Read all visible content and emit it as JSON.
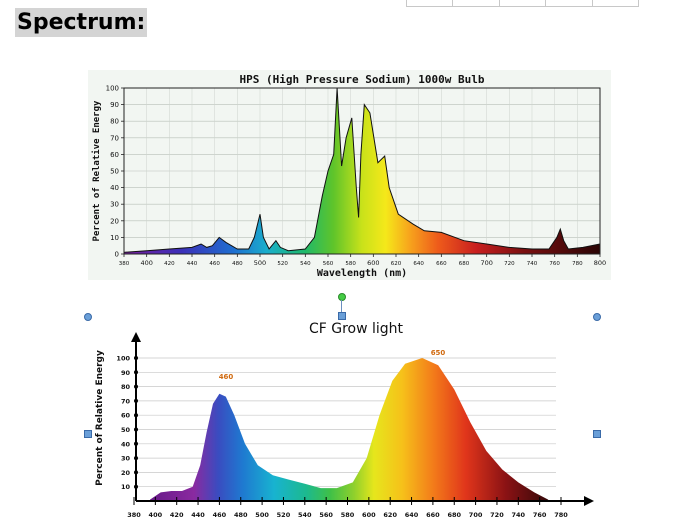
{
  "heading": "Spectrum:",
  "chart_data": [
    {
      "type": "area",
      "title": "HPS  (High Pressure Sodium) 1000w Bulb",
      "xlabel": "Wavelength (nm)",
      "ylabel": "Percent of Relative Energy",
      "xlim": [
        380,
        800
      ],
      "ylim": [
        0,
        100
      ],
      "x_ticks": [
        380,
        400,
        420,
        440,
        460,
        480,
        500,
        520,
        540,
        560,
        580,
        600,
        620,
        640,
        660,
        680,
        700,
        720,
        740,
        760,
        780,
        800
      ],
      "y_ticks": [
        0,
        10,
        20,
        30,
        40,
        50,
        60,
        70,
        80,
        90,
        100
      ],
      "grid": true,
      "points": [
        [
          380,
          1
        ],
        [
          400,
          2
        ],
        [
          420,
          3
        ],
        [
          440,
          4
        ],
        [
          448,
          6
        ],
        [
          453,
          4
        ],
        [
          458,
          5
        ],
        [
          464,
          10
        ],
        [
          470,
          7
        ],
        [
          480,
          3
        ],
        [
          490,
          3
        ],
        [
          495,
          10
        ],
        [
          500,
          24
        ],
        [
          503,
          10
        ],
        [
          508,
          3
        ],
        [
          514,
          8
        ],
        [
          518,
          4
        ],
        [
          525,
          2
        ],
        [
          540,
          3
        ],
        [
          548,
          10
        ],
        [
          555,
          35
        ],
        [
          560,
          50
        ],
        [
          565,
          60
        ],
        [
          568,
          100
        ],
        [
          572,
          53
        ],
        [
          576,
          70
        ],
        [
          581,
          82
        ],
        [
          585,
          40
        ],
        [
          587,
          22
        ],
        [
          589,
          60
        ],
        [
          592,
          90
        ],
        [
          597,
          85
        ],
        [
          604,
          55
        ],
        [
          610,
          59
        ],
        [
          614,
          40
        ],
        [
          622,
          24
        ],
        [
          635,
          18
        ],
        [
          645,
          14
        ],
        [
          660,
          13
        ],
        [
          680,
          8
        ],
        [
          700,
          6
        ],
        [
          720,
          4
        ],
        [
          740,
          3
        ],
        [
          755,
          3
        ],
        [
          762,
          10
        ],
        [
          765,
          15
        ],
        [
          768,
          8
        ],
        [
          772,
          3
        ],
        [
          785,
          4
        ],
        [
          800,
          6
        ]
      ]
    },
    {
      "type": "area",
      "title": "CF Grow light",
      "xlabel": "",
      "ylabel": "Percent of Relative Energy",
      "xlim": [
        380,
        780
      ],
      "ylim": [
        0,
        100
      ],
      "x_ticks": [
        380,
        400,
        420,
        440,
        460,
        480,
        500,
        520,
        540,
        560,
        580,
        600,
        620,
        640,
        660,
        680,
        700,
        720,
        740,
        760,
        780
      ],
      "y_ticks": [
        10,
        20,
        30,
        40,
        50,
        60,
        70,
        80,
        90,
        100
      ],
      "grid": true,
      "annotations": [
        "460",
        "650"
      ],
      "points": [
        [
          395,
          1
        ],
        [
          405,
          6
        ],
        [
          415,
          7
        ],
        [
          425,
          7
        ],
        [
          435,
          10
        ],
        [
          442,
          25
        ],
        [
          448,
          48
        ],
        [
          454,
          68
        ],
        [
          460,
          75
        ],
        [
          466,
          73
        ],
        [
          474,
          60
        ],
        [
          484,
          40
        ],
        [
          496,
          25
        ],
        [
          510,
          18
        ],
        [
          525,
          15
        ],
        [
          540,
          12
        ],
        [
          555,
          9
        ],
        [
          570,
          9
        ],
        [
          585,
          13
        ],
        [
          598,
          30
        ],
        [
          610,
          60
        ],
        [
          622,
          84
        ],
        [
          634,
          96
        ],
        [
          650,
          100
        ],
        [
          665,
          95
        ],
        [
          680,
          78
        ],
        [
          695,
          55
        ],
        [
          710,
          35
        ],
        [
          725,
          22
        ],
        [
          740,
          13
        ],
        [
          755,
          6
        ],
        [
          768,
          1
        ]
      ]
    }
  ]
}
